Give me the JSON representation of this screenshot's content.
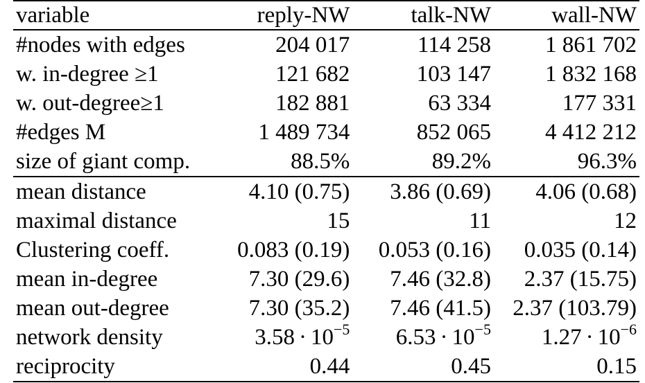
{
  "table": {
    "headers": [
      "variable",
      "reply-NW",
      "talk-NW",
      "wall-NW"
    ],
    "rows": [
      {
        "label": "#nodes with edges",
        "values": [
          "204 017",
          "114 258",
          "1 861 702"
        ]
      },
      {
        "label": "w. in-degree ≥1",
        "values": [
          "121 682",
          "103 147",
          "1 832 168"
        ]
      },
      {
        "label": "w. out-degree≥1",
        "values": [
          "182 881",
          "63 334",
          "177 331"
        ]
      },
      {
        "label": "#edges M",
        "values": [
          "1 489 734",
          "852 065",
          "4 412 212"
        ]
      },
      {
        "label": "size of giant comp.",
        "values": [
          "88.5%",
          "89.2%",
          "96.3%"
        ]
      },
      {
        "label": "mean distance",
        "values": [
          "4.10 (0.75)",
          "3.86 (0.69)",
          "4.06 (0.68)"
        ]
      },
      {
        "label": "maximal distance",
        "values": [
          "15",
          "11",
          "12"
        ]
      },
      {
        "label": "Clustering coeff.",
        "values": [
          "0.083 (0.19)",
          "0.053 (0.16)",
          "0.035 (0.14)"
        ]
      },
      {
        "label": "mean in-degree",
        "values": [
          "7.30 (29.6)",
          "7.46 (32.8)",
          "2.37 (15.75)"
        ]
      },
      {
        "label": "mean out-degree",
        "values": [
          "7.30 (35.2)",
          "7.46 (41.5)",
          "2.37 (103.79)"
        ]
      },
      {
        "label": "network density",
        "values": [
          {
            "mantissa": "3.58",
            "dot": "·",
            "base": "10",
            "exp": "−5"
          },
          {
            "mantissa": "6.53",
            "dot": "·",
            "base": "10",
            "exp": "−5"
          },
          {
            "mantissa": "1.27",
            "dot": "·",
            "base": "10",
            "exp": "−6"
          }
        ]
      },
      {
        "label": "reciprocity",
        "values": [
          "0.44",
          "0.45",
          "0.15"
        ]
      }
    ]
  }
}
